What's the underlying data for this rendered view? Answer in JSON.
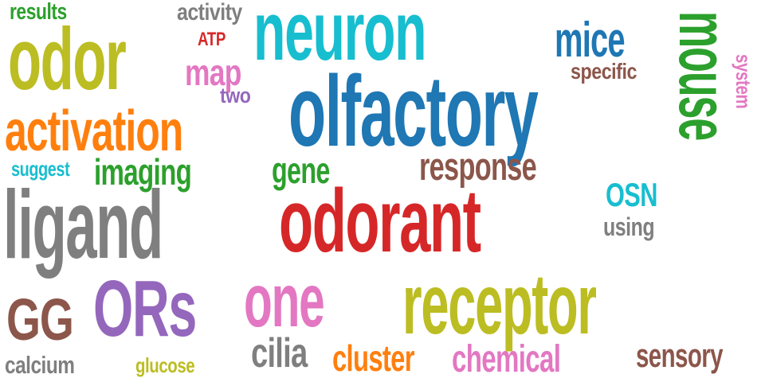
{
  "words": {
    "neuron": {
      "text": "neuron",
      "color": "#17becf"
    },
    "olfactory": {
      "text": "olfactory",
      "color": "#1f77b4"
    },
    "odorant": {
      "text": "odorant",
      "color": "#d62728"
    },
    "receptor": {
      "text": "receptor",
      "color": "#bcbd22"
    },
    "ligand": {
      "text": "ligand",
      "color": "#7f7f7f"
    },
    "odor": {
      "text": "odor",
      "color": "#bcbd22"
    },
    "activation": {
      "text": "activation",
      "color": "#ff7f0e"
    },
    "one": {
      "text": "one",
      "color": "#e377c2"
    },
    "ORs": {
      "text": "ORs",
      "color": "#9467bd"
    },
    "mouse": {
      "text": "mouse",
      "color": "#2ca02c"
    },
    "mice": {
      "text": "mice",
      "color": "#1f77b4"
    },
    "GG": {
      "text": "GG",
      "color": "#8c564b"
    },
    "response": {
      "text": "response",
      "color": "#8c564b"
    },
    "imaging": {
      "text": "imaging",
      "color": "#2ca02c"
    },
    "cilia": {
      "text": "cilia",
      "color": "#7f7f7f"
    },
    "cluster": {
      "text": "cluster",
      "color": "#ff7f0e"
    },
    "chemical": {
      "text": "chemical",
      "color": "#e377c2"
    },
    "sensory": {
      "text": "sensory",
      "color": "#8c564b"
    },
    "map": {
      "text": "map",
      "color": "#e377c2"
    },
    "gene": {
      "text": "gene",
      "color": "#2ca02c"
    },
    "OSN": {
      "text": "OSN",
      "color": "#17becf"
    },
    "activity": {
      "text": "activity",
      "color": "#7f7f7f"
    },
    "results": {
      "text": "results",
      "color": "#2ca02c"
    },
    "specific": {
      "text": "specific",
      "color": "#8c564b"
    },
    "using": {
      "text": "using",
      "color": "#7f7f7f"
    },
    "calcium": {
      "text": "calcium",
      "color": "#7f7f7f"
    },
    "glucose": {
      "text": "glucose",
      "color": "#bcbd22"
    },
    "suggest": {
      "text": "suggest",
      "color": "#17becf"
    },
    "system": {
      "text": "system",
      "color": "#e377c2"
    },
    "two": {
      "text": "two",
      "color": "#9467bd"
    },
    "ATP": {
      "text": "ATP",
      "color": "#d62728"
    }
  }
}
